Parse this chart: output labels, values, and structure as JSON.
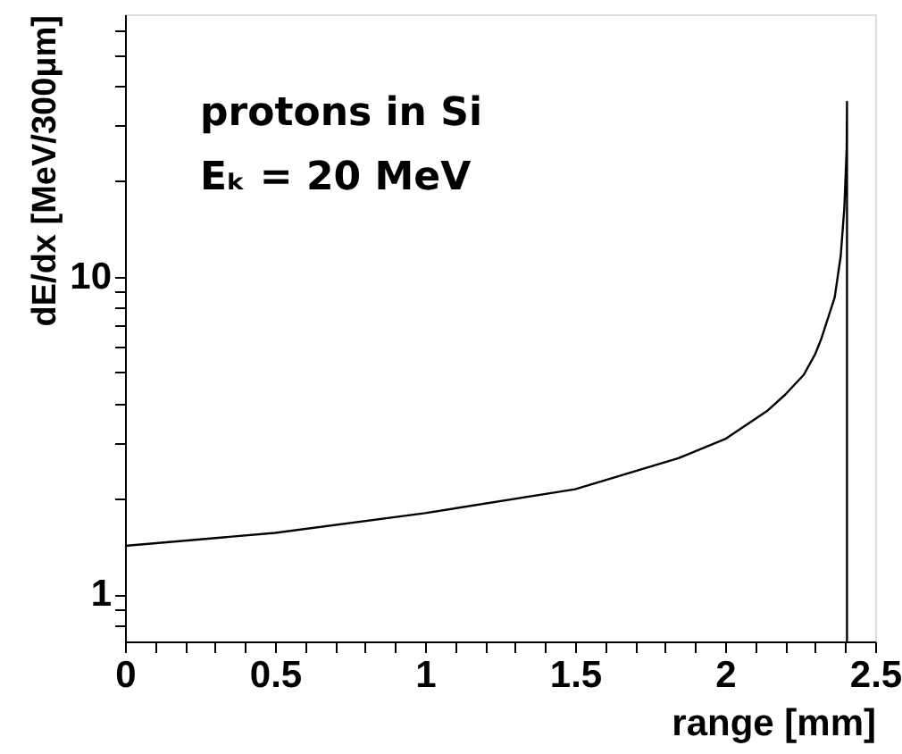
{
  "chart_data": {
    "type": "line",
    "xlabel": "range [mm]",
    "ylabel": "dE/dx [MeV/300μm]",
    "annotations": [
      "protons in Si",
      "Eₖ = 20 MeV"
    ],
    "x": [
      0,
      0.5,
      1,
      1.5,
      1.844,
      2,
      2.142,
      2.2,
      2.262,
      2.3,
      2.32,
      2.365,
      2.385,
      2.397,
      2.405,
      2.406,
      2.406
    ],
    "series": [
      {
        "color": "#000000",
        "values": [
          1.42,
          1.56,
          1.8,
          2.14,
          2.68,
          3.08,
          3.79,
          4.25,
          4.91,
          5.7,
          6.36,
          8.6,
          11.6,
          16.4,
          25.4,
          35.5,
          0.71
        ]
      }
    ],
    "xlim": [
      0,
      2.5
    ],
    "xticks": [
      0,
      {
        "value": 0.1,
        "label": null
      },
      {
        "value": 0.2,
        "label": null
      },
      {
        "value": 0.3,
        "label": null
      },
      {
        "value": 0.4,
        "label": null
      },
      0.5,
      {
        "value": 0.6,
        "label": null
      },
      {
        "value": 0.7,
        "label": null
      },
      {
        "value": 0.8,
        "label": null
      },
      {
        "value": 0.9,
        "label": null
      },
      1,
      {
        "value": 1.1,
        "label": null
      },
      {
        "value": 1.2,
        "label": null
      },
      {
        "value": 1.3,
        "label": null
      },
      {
        "value": 1.4,
        "label": null
      },
      1.5,
      {
        "value": 1.6,
        "label": null
      },
      {
        "value": 1.7,
        "label": null
      },
      {
        "value": 1.8,
        "label": null
      },
      {
        "value": 1.9,
        "label": null
      },
      2,
      {
        "value": 2.1,
        "label": null
      },
      {
        "value": 2.2,
        "label": null
      },
      {
        "value": 2.3,
        "label": null
      },
      {
        "value": 2.4,
        "label": null
      },
      2.5
    ],
    "ylim": [
      0.71,
      67
    ],
    "log": true,
    "yticks": [
      {
        "value": 0.8,
        "label": null
      },
      {
        "value": 0.9,
        "label": null
      },
      1,
      {
        "value": 2,
        "label": null
      },
      {
        "value": 3,
        "label": null
      },
      {
        "value": 4,
        "label": null
      },
      {
        "value": 5,
        "label": null
      },
      {
        "value": 6,
        "label": null
      },
      {
        "value": 7,
        "label": null
      },
      {
        "value": 8,
        "label": null
      },
      {
        "value": 9,
        "label": null
      },
      10,
      {
        "value": 20,
        "label": null
      },
      {
        "value": 30,
        "label": null
      },
      {
        "value": 40,
        "label": null
      },
      {
        "value": 50,
        "label": null
      },
      {
        "value": 60,
        "label": null
      }
    ],
    "grid": false,
    "marker": "none",
    "line_style": "solid"
  }
}
